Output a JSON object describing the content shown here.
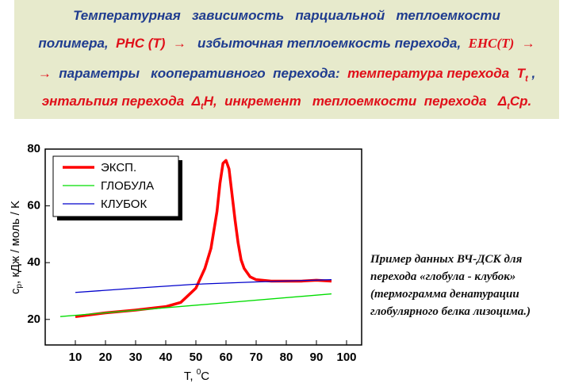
{
  "header": {
    "lines": [
      [
        "Температурная   зависимость   парциальной   теплоемкости"
      ],
      [
        "полимера,  ",
        "PHC (T)",
        "  →  ",
        " избыточная теплоемкость перехода,  ",
        "EHC(T)",
        "  →"
      ],
      [
        "→  ",
        "параметры   кооперативного  перехода:  ",
        "температура перехода  T",
        "t",
        " ,"
      ],
      [
        "энтальпия перехода  Δ",
        "t",
        "H,  инкремент   теплоемкости  перехода   Δ",
        "t",
        "Cp."
      ]
    ]
  },
  "caption": {
    "lines": [
      "Пример данных ВЧ-ДСК для",
      "перехода  «глобула - клубок»",
      "(термограмма  денатурации",
      "глобулярного белка лизоцима.)"
    ]
  },
  "chart_data": {
    "type": "line",
    "x_label": [
      "T, ",
      "0",
      "C"
    ],
    "y_label": [
      "c",
      "p",
      ", кДж / моль / K"
    ],
    "xlim": [
      0,
      105
    ],
    "ylim": [
      11,
      80
    ],
    "xticks": [
      10,
      20,
      30,
      40,
      50,
      60,
      70,
      80,
      90,
      100
    ],
    "yticks": [
      20,
      40,
      60,
      80
    ],
    "legend": "upper left",
    "series": [
      {
        "name": "ЭКСП.",
        "color": "#ff0000",
        "x": [
          10,
          20,
          30,
          40,
          45,
          48,
          50,
          53,
          55,
          57,
          58,
          59,
          60,
          61,
          62,
          63,
          64,
          65,
          66,
          68,
          70,
          75,
          80,
          85,
          90,
          95
        ],
        "values": [
          21,
          22.3,
          23.3,
          24.5,
          26,
          29,
          31,
          38,
          45,
          58,
          68,
          75,
          76,
          73,
          64,
          55,
          47,
          41,
          38,
          35,
          34,
          33.5,
          33.5,
          33.5,
          33.8,
          33.5
        ]
      },
      {
        "name": "ГЛОБУЛА",
        "color": "#00dd00",
        "x": [
          5,
          95
        ],
        "values": [
          21,
          29
        ]
      },
      {
        "name": "КЛУБОК",
        "color": "#0000cc",
        "x": [
          10,
          30,
          50,
          70,
          95
        ],
        "values": [
          29.5,
          31,
          32.4,
          33.2,
          34
        ]
      }
    ]
  }
}
